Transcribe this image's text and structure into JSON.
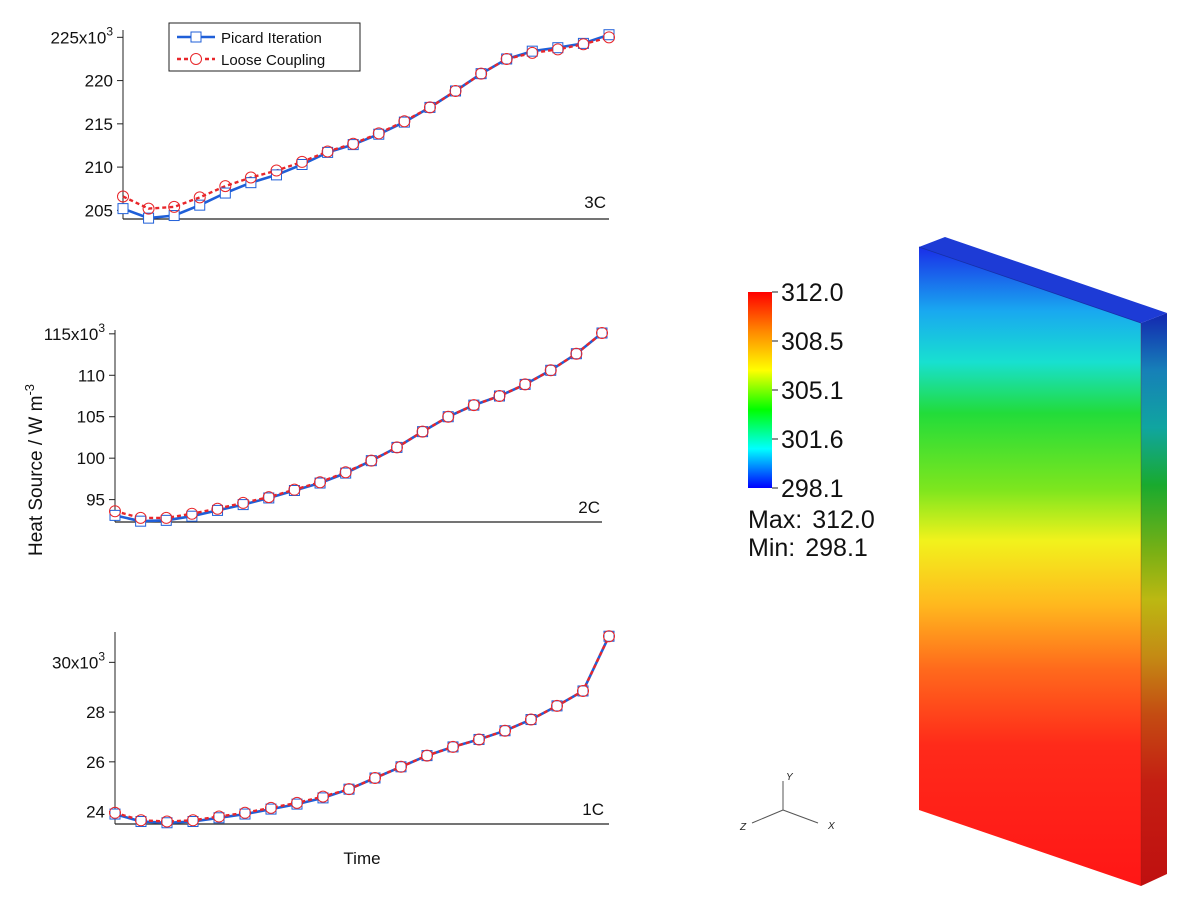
{
  "figure": {
    "ylabel": "Heat Source / W m",
    "ylabel_sup": "-3",
    "xlabel": "Time"
  },
  "legend": {
    "position": "top-left",
    "entries": [
      {
        "label": "Picard Iteration",
        "marker": "square",
        "color": "#1f5fd8",
        "line": "solid"
      },
      {
        "label": "Loose Coupling",
        "marker": "circle",
        "color": "#e8262a",
        "line": "dashed"
      }
    ]
  },
  "colorbar": {
    "ticks": [
      "312.0",
      "308.5",
      "305.1",
      "301.6",
      "298.1"
    ],
    "max_label": "Max:",
    "max_value": "312.0",
    "min_label": "Min:",
    "min_value": "298.1",
    "min": 298.1,
    "max": 312.0,
    "colors": [
      "#ff0000",
      "#ff8800",
      "#ffff00",
      "#00ff00",
      "#00ffff",
      "#0000ff"
    ]
  },
  "axes_triad": {
    "x": "X",
    "y": "Y",
    "z": "Z"
  },
  "chart_data": [
    {
      "type": "line",
      "panel_label": "3C",
      "tick_labels": [
        {
          "value": 225,
          "base": "225x10",
          "sup": "3"
        },
        {
          "value": 220,
          "base": "220",
          "sup": ""
        },
        {
          "value": 215,
          "base": "215",
          "sup": ""
        },
        {
          "value": 210,
          "base": "210",
          "sup": ""
        },
        {
          "value": 205,
          "base": "205",
          "sup": ""
        }
      ],
      "ylim": [
        203.5,
        226.5
      ],
      "series": [
        {
          "name": "Picard Iteration",
          "values": [
            205.2,
            204.1,
            204.4,
            205.6,
            207.0,
            208.2,
            209.1,
            210.3,
            211.7,
            212.6,
            213.8,
            215.2,
            216.9,
            218.8,
            220.8,
            222.5,
            223.4,
            223.8,
            224.3,
            225.3
          ]
        },
        {
          "name": "Loose Coupling",
          "values": [
            206.6,
            205.2,
            205.4,
            206.5,
            207.8,
            208.8,
            209.6,
            210.6,
            211.8,
            212.7,
            213.9,
            215.3,
            216.9,
            218.8,
            220.8,
            222.5,
            223.2,
            223.6,
            224.2,
            225.0
          ]
        }
      ]
    },
    {
      "type": "line",
      "panel_label": "2C",
      "tick_labels": [
        {
          "value": 115,
          "base": "115x10",
          "sup": "3"
        },
        {
          "value": 110,
          "base": "110",
          "sup": ""
        },
        {
          "value": 105,
          "base": "105",
          "sup": ""
        },
        {
          "value": 100,
          "base": "100",
          "sup": ""
        },
        {
          "value": 95,
          "base": "95",
          "sup": ""
        }
      ],
      "ylim": [
        91.5,
        116.5
      ],
      "series": [
        {
          "name": "Picard Iteration",
          "values": [
            93.1,
            92.4,
            92.5,
            93.0,
            93.7,
            94.4,
            95.2,
            96.1,
            97.0,
            98.2,
            99.7,
            101.3,
            103.2,
            105.0,
            106.4,
            107.5,
            108.9,
            110.6,
            112.6,
            115.1
          ]
        },
        {
          "name": "Loose Coupling",
          "values": [
            93.6,
            92.8,
            92.8,
            93.3,
            93.9,
            94.6,
            95.3,
            96.2,
            97.1,
            98.3,
            99.7,
            101.3,
            103.2,
            105.0,
            106.4,
            107.5,
            108.9,
            110.6,
            112.6,
            115.1
          ]
        }
      ]
    },
    {
      "type": "line",
      "panel_label": "1C",
      "tick_labels": [
        {
          "value": 30,
          "base": "30x10",
          "sup": "3"
        },
        {
          "value": 28,
          "base": "28",
          "sup": ""
        },
        {
          "value": 26,
          "base": "26",
          "sup": ""
        },
        {
          "value": 24,
          "base": "24",
          "sup": ""
        }
      ],
      "ylim": [
        23.5,
        31.1
      ],
      "series": [
        {
          "name": "Picard Iteration",
          "values": [
            23.9,
            23.6,
            23.55,
            23.6,
            23.75,
            23.9,
            24.1,
            24.3,
            24.55,
            24.9,
            25.35,
            25.8,
            26.25,
            26.6,
            26.9,
            27.25,
            27.7,
            28.25,
            28.85,
            31.05
          ]
        },
        {
          "name": "Loose Coupling",
          "values": [
            23.95,
            23.65,
            23.6,
            23.65,
            23.8,
            23.95,
            24.15,
            24.35,
            24.6,
            24.9,
            25.35,
            25.8,
            26.25,
            26.6,
            26.9,
            27.25,
            27.7,
            28.25,
            28.85,
            31.05
          ]
        }
      ]
    }
  ]
}
